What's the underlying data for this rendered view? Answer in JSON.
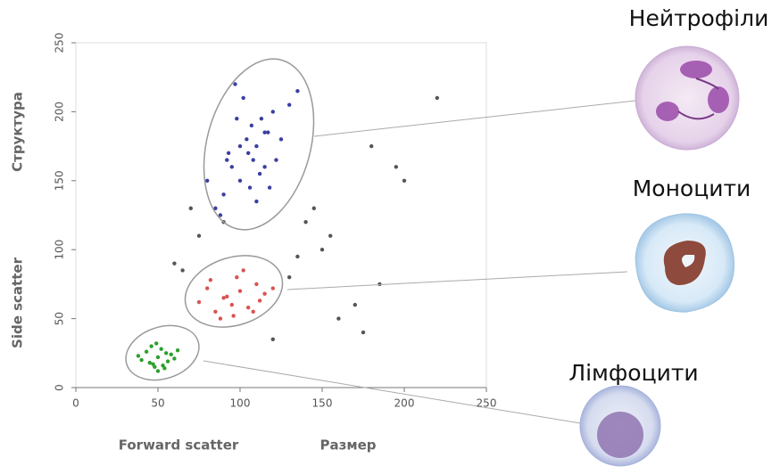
{
  "chart_data": {
    "type": "scatter",
    "xlabels": [
      "Forward scatter",
      "Размер"
    ],
    "ylabels": [
      "Side scatter",
      "Структура"
    ],
    "annotations": [
      "Нейтрофіли",
      "Моноцити",
      "Лімфоцити"
    ],
    "xlim": [
      0,
      250
    ],
    "xticks": [
      0,
      50,
      100,
      150,
      200,
      250
    ],
    "ylim": [
      0,
      250
    ],
    "yticks": [
      0,
      50,
      100,
      150,
      200,
      250
    ],
    "series": [
      {
        "color": "#3b3fa0",
        "x": [
          105,
          95,
          115,
          100,
          110,
          90,
          120,
          108,
          98,
          112,
          85,
          125,
          102,
          118,
          93,
          107,
          130,
          88,
          115,
          100,
          110,
          97,
          122,
          104,
          80,
          135,
          113,
          92,
          106,
          117
        ],
        "values": [
          170,
          160,
          185,
          150,
          175,
          140,
          200,
          165,
          195,
          155,
          130,
          180,
          210,
          145,
          170,
          190,
          205,
          125,
          160,
          175,
          135,
          220,
          165,
          180,
          150,
          215,
          195,
          165,
          145,
          185
        ]
      },
      {
        "color": "#d9534f",
        "x": [
          90,
          100,
          85,
          110,
          95,
          80,
          105,
          115,
          75,
          98,
          120,
          88,
          102,
          92,
          108,
          82,
          112,
          96
        ],
        "values": [
          65,
          70,
          55,
          75,
          60,
          72,
          58,
          68,
          62,
          80,
          72,
          50,
          85,
          66,
          55,
          78,
          63,
          52
        ]
      },
      {
        "color": "#2ca02c",
        "x": [
          50,
          45,
          55,
          48,
          52,
          40,
          58,
          46,
          53,
          60,
          43,
          50,
          56,
          38,
          49,
          62,
          47,
          54
        ],
        "values": [
          22,
          18,
          25,
          15,
          28,
          20,
          24,
          30,
          16,
          21,
          26,
          12,
          19,
          23,
          32,
          27,
          17,
          14
        ]
      },
      {
        "color": "#555555",
        "x": [
          60,
          140,
          170,
          155,
          75,
          200,
          180,
          130,
          65,
          145,
          90,
          160,
          175,
          185,
          220,
          70,
          150,
          135,
          120,
          195
        ],
        "values": [
          90,
          120,
          60,
          110,
          110,
          150,
          175,
          80,
          85,
          130,
          120,
          50,
          40,
          75,
          210,
          130,
          100,
          95,
          35,
          160
        ]
      }
    ]
  }
}
